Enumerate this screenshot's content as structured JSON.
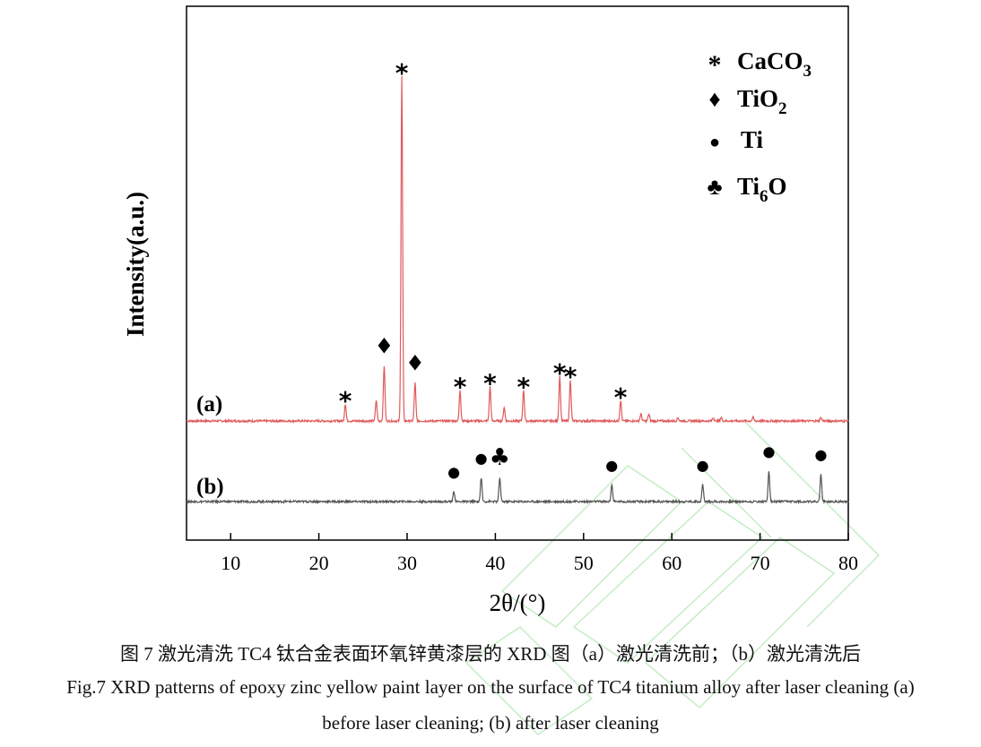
{
  "chart_data": {
    "type": "line",
    "title": "",
    "xlabel": "2θ/(°)",
    "ylabel": "Intensity(a.u.)",
    "xlim": [
      5,
      80
    ],
    "xticks": [
      10,
      20,
      30,
      40,
      50,
      60,
      70,
      80
    ],
    "grid": false,
    "legend_position": "top-right",
    "series": [
      {
        "name": "(a)",
        "color": "#e05a5a",
        "peaks": [
          {
            "x": 23.0,
            "y": 0.05
          },
          {
            "x": 26.5,
            "y": 0.06
          },
          {
            "x": 27.4,
            "y": 0.16
          },
          {
            "x": 29.4,
            "y": 1.0
          },
          {
            "x": 30.9,
            "y": 0.11
          },
          {
            "x": 36.0,
            "y": 0.09
          },
          {
            "x": 39.4,
            "y": 0.1
          },
          {
            "x": 41.0,
            "y": 0.04
          },
          {
            "x": 43.2,
            "y": 0.09
          },
          {
            "x": 47.3,
            "y": 0.13
          },
          {
            "x": 48.5,
            "y": 0.12
          },
          {
            "x": 54.2,
            "y": 0.06
          },
          {
            "x": 56.5,
            "y": 0.02
          },
          {
            "x": 57.4,
            "y": 0.02
          },
          {
            "x": 60.7,
            "y": 0.01
          },
          {
            "x": 64.7,
            "y": 0.01
          },
          {
            "x": 65.6,
            "y": 0.01
          },
          {
            "x": 69.2,
            "y": 0.01
          },
          {
            "x": 76.9,
            "y": 0.01
          }
        ]
      },
      {
        "name": "(b)",
        "color": "#555555",
        "peaks": [
          {
            "x": 35.3,
            "y": 0.03
          },
          {
            "x": 38.4,
            "y": 0.07
          },
          {
            "x": 40.5,
            "y": 0.07
          },
          {
            "x": 53.2,
            "y": 0.05
          },
          {
            "x": 63.5,
            "y": 0.05
          },
          {
            "x": 71.0,
            "y": 0.09
          },
          {
            "x": 76.9,
            "y": 0.08
          }
        ]
      }
    ],
    "markers": {
      "CaCO3": {
        "symbol": "*",
        "x": [
          23.0,
          29.4,
          36.0,
          39.4,
          43.2,
          47.3,
          48.5,
          54.2
        ]
      },
      "TiO2": {
        "symbol": "♦",
        "x": [
          27.4,
          30.9
        ]
      },
      "Ti": {
        "symbol": "●",
        "x": [
          35.3,
          38.4,
          53.2,
          63.5,
          71.0,
          76.9
        ]
      },
      "Ti6O": {
        "symbol": "♣",
        "x": [
          40.5
        ]
      }
    },
    "legend": [
      {
        "symbol": "*",
        "label": "CaCO",
        "sub": "3"
      },
      {
        "symbol": "♦",
        "label": "TiO",
        "sub": "2"
      },
      {
        "symbol": "●",
        "label": "Ti",
        "sub": ""
      },
      {
        "symbol": "♣",
        "label": "Ti",
        "sub": "6",
        "label2": "O"
      }
    ],
    "curve_labels": [
      "(a)",
      "(b)"
    ]
  },
  "caption": {
    "zh": "图 7  激光清洗 TC4 钛合金表面环氧锌黄漆层的 XRD 图（a）激光清洗前；（b）激光清洗后",
    "en_line1": "Fig.7 XRD patterns of epoxy zinc yellow paint layer on the surface of TC4 titanium alloy after laser cleaning (a)",
    "en_line2": "before laser cleaning; (b) after laser cleaning"
  }
}
